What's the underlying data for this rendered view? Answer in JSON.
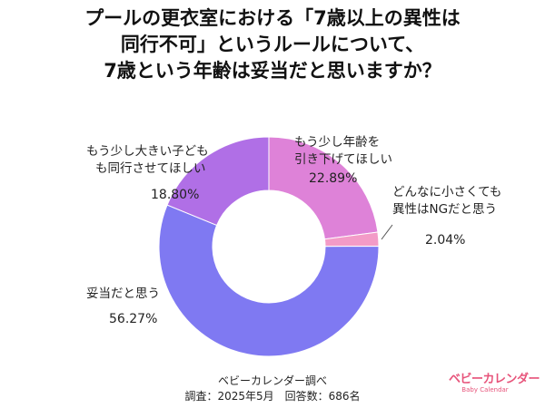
{
  "title_lines": [
    "プールの更衣室における「7歳以上の異性は",
    "同行不可」というルールについて、",
    "7歳という年齢は妥当だと思いますか？"
  ],
  "chart_data": {
    "type": "pie",
    "donut": true,
    "legend": "none",
    "slices": [
      {
        "label_lines": [
          "もう少し年齢を",
          "引き下げてほしい"
        ],
        "value": 22.89,
        "value_text": "22.89%",
        "color": "#de82d8"
      },
      {
        "label_lines": [
          "どんなに小さくても",
          "異性はNGだと思う"
        ],
        "value": 2.04,
        "value_text": "2.04%",
        "color": "#f39bc7"
      },
      {
        "label_lines": [
          "妥当だと思う"
        ],
        "value": 56.27,
        "value_text": "56.27%",
        "color": "#7f79f2"
      },
      {
        "label_lines": [
          "もう少し大きい子ども",
          "も同行させてほしい"
        ],
        "value": 18.8,
        "value_text": "18.80%",
        "color": "#b06fe6"
      }
    ]
  },
  "footer": {
    "source": "ベビーカレンダー調べ",
    "survey": "調査：2025年5月　回答数：686名"
  },
  "logo": {
    "main": "ベビーカレンダー",
    "sub": "Baby Calendar"
  }
}
